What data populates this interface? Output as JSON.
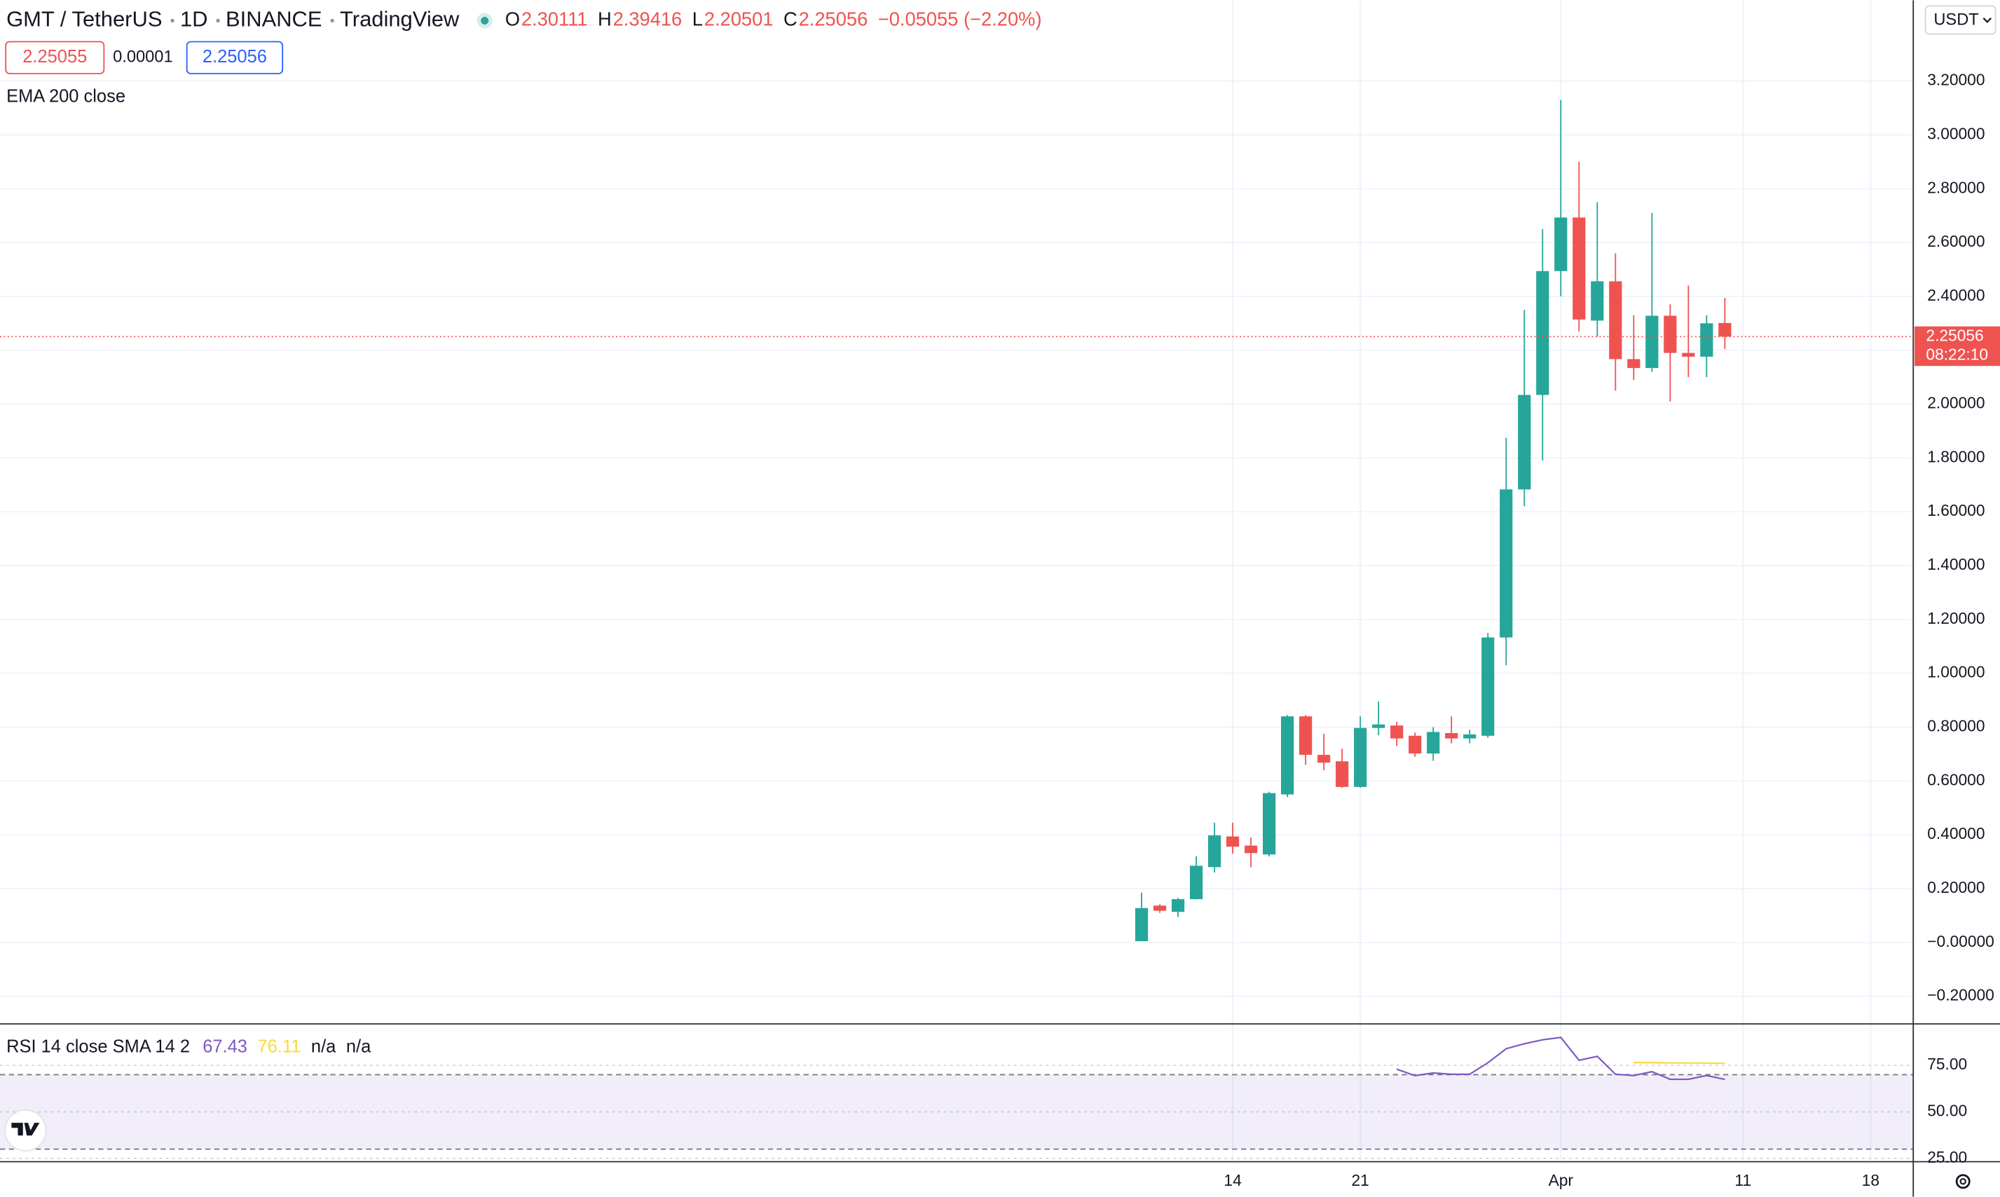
{
  "chart_data": [
    {
      "type": "candlestick",
      "symbol": "GMT / TetherUS",
      "interval": "1D",
      "exchange": "BINANCE",
      "source": "TradingView",
      "ohlc_keys": [
        "O",
        "H",
        "L",
        "C"
      ],
      "change_label": "−0.05055 (−2.20%)",
      "bid": 2.25055,
      "spread": 1e-05,
      "ask": 2.25056,
      "indicator_label": "EMA 200 close",
      "currency": "USDT",
      "countdown": "08:22:10",
      "up_color": "#26a69a",
      "down_color": "#ef5350",
      "categories": [
        null,
        null,
        null,
        null,
        null,
        "14",
        null,
        null,
        null,
        null,
        null,
        null,
        "21",
        null,
        null,
        null,
        null,
        null,
        null,
        null,
        null,
        null,
        null,
        "Apr",
        null,
        null,
        null,
        null,
        null,
        null,
        null,
        null,
        null,
        "11",
        null,
        null,
        null,
        null,
        null,
        null,
        "18"
      ],
      "open": [
        0.005,
        0.137,
        0.114,
        0.161,
        0.28,
        0.394,
        0.36,
        0.327,
        0.55,
        0.84,
        0.697,
        0.673,
        0.578,
        0.797,
        0.806,
        0.768,
        0.702,
        0.778,
        0.758,
        0.768,
        1.133,
        1.683,
        2.034,
        2.494,
        2.693,
        2.31,
        2.456,
        2.167,
        2.134,
        2.328,
        2.19,
        2.176,
        2.30111,
        null,
        null,
        null,
        null,
        null,
        null,
        null,
        null
      ],
      "high": [
        0.185,
        0.142,
        0.166,
        0.32,
        0.445,
        0.445,
        0.39,
        0.56,
        0.845,
        0.845,
        0.775,
        0.72,
        0.84,
        0.895,
        0.82,
        0.78,
        0.8,
        0.84,
        0.79,
        1.15,
        1.875,
        2.35,
        2.65,
        3.13,
        2.9,
        2.75,
        2.56,
        2.33,
        2.71,
        2.37,
        2.44,
        2.33,
        2.39416,
        null,
        null,
        null,
        null,
        null,
        null,
        null,
        null
      ],
      "low": [
        0.005,
        0.11,
        0.095,
        0.16,
        0.26,
        0.33,
        0.28,
        0.32,
        0.54,
        0.66,
        0.64,
        0.575,
        0.575,
        0.77,
        0.73,
        0.69,
        0.675,
        0.74,
        0.74,
        0.76,
        1.03,
        1.62,
        1.79,
        2.4,
        2.27,
        2.25,
        2.05,
        2.09,
        2.12,
        2.01,
        2.1,
        2.1,
        2.20501,
        null,
        null,
        null,
        null,
        null,
        null,
        null,
        null
      ],
      "close": [
        0.128,
        0.118,
        0.161,
        0.285,
        0.398,
        0.356,
        0.332,
        0.555,
        0.84,
        0.697,
        0.668,
        0.578,
        0.797,
        0.81,
        0.758,
        0.702,
        0.782,
        0.758,
        0.773,
        1.133,
        1.683,
        2.034,
        2.494,
        2.693,
        2.314,
        2.456,
        2.167,
        2.134,
        2.328,
        2.19,
        2.176,
        2.3,
        2.25056,
        null,
        null,
        null,
        null,
        null,
        null,
        null,
        null
      ],
      "ylim": [
        -0.3,
        3.5
      ],
      "yticks": [
        {
          "value": -0.2,
          "label": "−0.20000"
        },
        {
          "value": 0,
          "label": "−0.00000"
        },
        {
          "value": 0.2,
          "label": "0.20000"
        },
        {
          "value": 0.4,
          "label": "0.40000"
        },
        {
          "value": 0.6,
          "label": "0.60000"
        },
        {
          "value": 0.8,
          "label": "0.80000"
        },
        {
          "value": 1.0,
          "label": "1.00000"
        },
        {
          "value": 1.2,
          "label": "1.20000"
        },
        {
          "value": 1.4,
          "label": "1.40000"
        },
        {
          "value": 1.6,
          "label": "1.60000"
        },
        {
          "value": 1.8,
          "label": "1.80000"
        },
        {
          "value": 2.0,
          "label": "2.00000"
        },
        {
          "value": 2.2,
          "label": "2.20000"
        },
        {
          "value": 2.4,
          "label": "2.40000"
        },
        {
          "value": 2.6,
          "label": "2.60000"
        },
        {
          "value": 2.8,
          "label": "2.80000"
        },
        {
          "value": 3.0,
          "label": "3.00000"
        },
        {
          "value": 3.2,
          "label": "3.20000"
        }
      ],
      "grid": true
    },
    {
      "type": "line",
      "title": "RSI 14 close SMA 14 2",
      "extra_labels": [
        "n/a",
        "n/a"
      ],
      "series": [
        {
          "color": "#7e57c2",
          "values": [
            null,
            null,
            null,
            null,
            null,
            null,
            null,
            null,
            null,
            null,
            null,
            null,
            null,
            null,
            72.9,
            69.5,
            70.9,
            70.2,
            70.2,
            76.4,
            83.9,
            86.6,
            88.7,
            90,
            77.7,
            79.8,
            70.2,
            69.5,
            71.6,
            67.5,
            67.5,
            69.5,
            67.43,
            null,
            null,
            null,
            null,
            null,
            null,
            null,
            null
          ]
        },
        {
          "color": "#fdd835",
          "values": [
            null,
            null,
            null,
            null,
            null,
            null,
            null,
            null,
            null,
            null,
            null,
            null,
            null,
            null,
            null,
            null,
            null,
            null,
            null,
            null,
            null,
            null,
            null,
            null,
            null,
            null,
            null,
            76.5,
            76.4,
            76.3,
            76.25,
            76.2,
            76.11,
            null,
            null,
            null,
            null,
            null,
            null,
            null,
            null
          ]
        }
      ],
      "bands": [
        30,
        70
      ],
      "band_color": "#7e57c2",
      "ylim": [
        23.6,
        96.9
      ],
      "yticks": [
        {
          "value": 25,
          "label": "25.00"
        },
        {
          "value": 50,
          "label": "50.00"
        },
        {
          "value": 75,
          "label": "75.00"
        }
      ],
      "grid": true
    }
  ]
}
